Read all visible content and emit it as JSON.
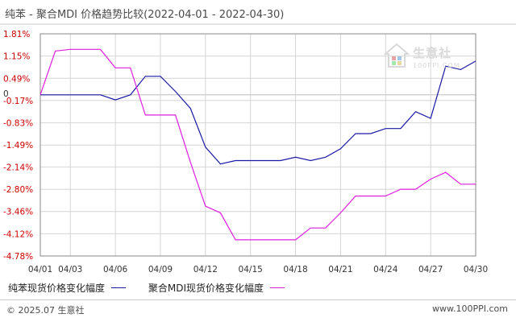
{
  "title": "纯苯 - 聚合MDI 价格趋势比较(2022-04-01 - 2022-04-30)",
  "watermark": {
    "name": "生意社",
    "url": "100PPI.COM"
  },
  "footer": {
    "copyright": "© 2025.07 生意社",
    "site": "www.100PPI.com"
  },
  "colors": {
    "series_1": "#1a1aa6",
    "series_2": "#e01fe0",
    "grid": "#d4d4d4",
    "axis": "#8a8a8a",
    "tick_label": "#cc0000"
  },
  "chart_data": {
    "type": "line",
    "title": "纯苯 - 聚合MDI 价格趋势比较(2022-04-01 - 2022-04-30)",
    "xlabel": "",
    "ylabel": "",
    "ylim": [
      -4.78,
      1.81
    ],
    "yticks": [
      "1.81%",
      "1.15%",
      "0.49%",
      "-0.17%",
      "-0.83%",
      "-1.49%",
      "-2.14%",
      "-2.80%",
      "-3.46%",
      "-4.12%",
      "-4.78%"
    ],
    "ytick_values": [
      1.81,
      1.15,
      0.49,
      -0.17,
      -0.83,
      -1.49,
      -2.14,
      -2.8,
      -3.46,
      -4.12,
      -4.78
    ],
    "zero_label": "0",
    "x": [
      "04/01",
      "04/02",
      "04/03",
      "04/04",
      "04/05",
      "04/06",
      "04/07",
      "04/08",
      "04/09",
      "04/10",
      "04/11",
      "04/12",
      "04/13",
      "04/14",
      "04/15",
      "04/16",
      "04/17",
      "04/18",
      "04/19",
      "04/20",
      "04/21",
      "04/22",
      "04/23",
      "04/24",
      "04/25",
      "04/26",
      "04/27",
      "04/28",
      "04/29",
      "04/30"
    ],
    "xticks": [
      "04/01",
      "04/03",
      "04/06",
      "04/09",
      "04/12",
      "04/15",
      "04/18",
      "04/21",
      "04/24",
      "04/27",
      "04/30"
    ],
    "legend_position": "bottom",
    "grid": true,
    "series": [
      {
        "name": "纯苯现货价格变化幅度",
        "values": [
          0,
          0,
          0,
          0,
          0,
          -0.15,
          0,
          0.55,
          0.55,
          0.1,
          -0.4,
          -1.55,
          -2.05,
          -1.95,
          -1.95,
          -1.95,
          -1.95,
          -1.85,
          -1.95,
          -1.85,
          -1.6,
          -1.15,
          -1.15,
          -1.0,
          -1.0,
          -0.5,
          -0.7,
          0.85,
          0.75,
          1.0
        ]
      },
      {
        "name": "聚合MDI现货价格变化幅度",
        "values": [
          0,
          1.3,
          1.35,
          1.35,
          1.35,
          0.8,
          0.8,
          -0.6,
          -0.6,
          -0.6,
          -2.0,
          -3.3,
          -3.5,
          -4.3,
          -4.3,
          -4.3,
          -4.3,
          -4.3,
          -3.95,
          -3.95,
          -3.5,
          -3.0,
          -3.0,
          -3.0,
          -2.8,
          -2.8,
          -2.5,
          -2.3,
          -2.65,
          -2.65
        ]
      }
    ]
  }
}
